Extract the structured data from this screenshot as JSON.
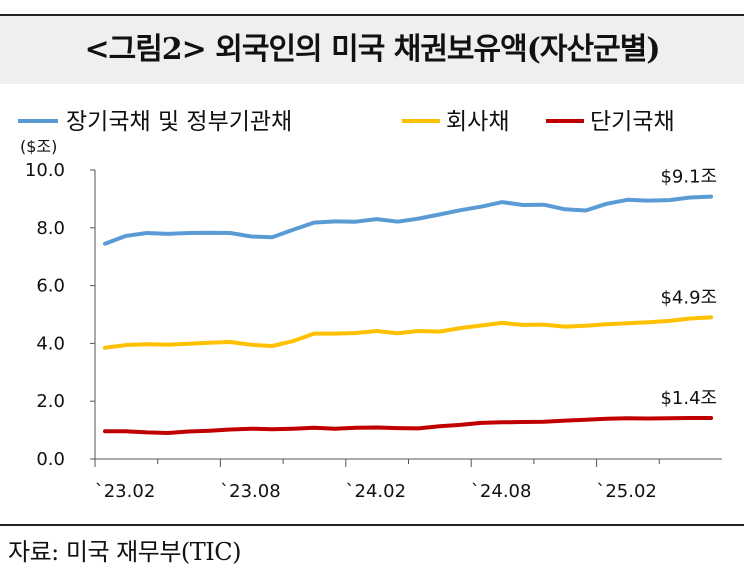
{
  "title": "<그림2> 외국인의 미국 채권보유액(자산군별)",
  "source": "자료: 미국 재무부(TIC)",
  "chart_data": {
    "type": "line",
    "unit_label": "($조)",
    "x": [
      "2023-02",
      "2023-03",
      "2023-04",
      "2023-05",
      "2023-06",
      "2023-07",
      "2023-08",
      "2023-09",
      "2023-10",
      "2023-11",
      "2023-12",
      "2024-01",
      "2024-02",
      "2024-03",
      "2024-04",
      "2024-05",
      "2024-06",
      "2024-07",
      "2024-08",
      "2024-09",
      "2024-10",
      "2024-11",
      "2024-12",
      "2025-01",
      "2025-02",
      "2025-03",
      "2025-04",
      "2025-05",
      "2025-06",
      "2025-07"
    ],
    "x_tick_labels": [
      "`23.02",
      "`23.08",
      "`24.02",
      "`24.08",
      "`25.02"
    ],
    "x_tick_positions": [
      "2023-02",
      "2023-08",
      "2024-02",
      "2024-08",
      "2025-02"
    ],
    "ylim": [
      0,
      10
    ],
    "y_ticks": [
      "0.0",
      "2.0",
      "4.0",
      "6.0",
      "8.0",
      "10.0"
    ],
    "series": [
      {
        "name": "장기국채 및 정부기관채",
        "color": "#5b9bd5",
        "values": [
          7.45,
          7.72,
          7.82,
          7.79,
          7.82,
          7.83,
          7.82,
          7.7,
          7.67,
          7.93,
          8.18,
          8.22,
          8.21,
          8.3,
          8.21,
          8.32,
          8.46,
          8.61,
          8.73,
          8.89,
          8.79,
          8.8,
          8.64,
          8.6,
          8.83,
          8.97,
          8.94,
          8.96,
          9.05,
          9.08
        ],
        "end_label": "$9.1조"
      },
      {
        "name": "회사채",
        "color": "#ffc000",
        "values": [
          3.85,
          3.94,
          3.97,
          3.96,
          3.99,
          4.02,
          4.05,
          3.95,
          3.91,
          4.08,
          4.34,
          4.34,
          4.36,
          4.43,
          4.35,
          4.43,
          4.41,
          4.53,
          4.62,
          4.71,
          4.64,
          4.65,
          4.58,
          4.61,
          4.66,
          4.7,
          4.73,
          4.78,
          4.86,
          4.9
        ],
        "end_label": "$4.9조"
      },
      {
        "name": "단기국채",
        "color": "#c00000",
        "values": [
          0.96,
          0.96,
          0.92,
          0.9,
          0.95,
          0.98,
          1.02,
          1.05,
          1.03,
          1.05,
          1.08,
          1.05,
          1.08,
          1.09,
          1.07,
          1.06,
          1.13,
          1.18,
          1.25,
          1.27,
          1.28,
          1.29,
          1.33,
          1.36,
          1.39,
          1.41,
          1.4,
          1.41,
          1.42,
          1.42
        ],
        "end_label": "$1.4조"
      }
    ]
  }
}
